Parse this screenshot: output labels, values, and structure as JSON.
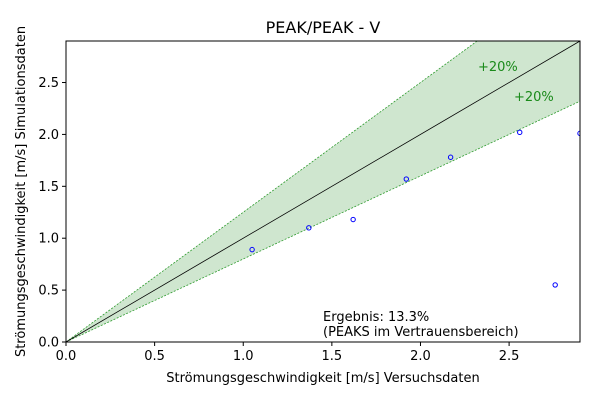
{
  "chart_data": {
    "type": "scatter",
    "title": "PEAK/PEAK - V",
    "xlabel": "Strömungsgeschwindigkeit [m/s] Versuchsdaten",
    "ylabel": "Strömungsgeschwindigkeit [m/s] Simulationsdaten",
    "xlim": [
      0,
      2.9
    ],
    "ylim": [
      0,
      2.9
    ],
    "xticks": [
      0.0,
      0.5,
      1.0,
      1.5,
      2.0,
      2.5
    ],
    "yticks": [
      0.0,
      0.5,
      1.0,
      1.5,
      2.0,
      2.5
    ],
    "xtick_labels": [
      "0.0",
      "0.5",
      "1.0",
      "1.5",
      "2.0",
      "2.5"
    ],
    "ytick_labels": [
      "0.0",
      "0.5",
      "1.0",
      "1.5",
      "2.0",
      "2.5"
    ],
    "grid": false,
    "reference_line": {
      "slope": 1.0
    },
    "tolerance_band": {
      "upper_slope": 1.25,
      "lower_slope": 0.8,
      "upper_label": "+20%",
      "lower_label": "+20%"
    },
    "points": [
      {
        "x": 1.05,
        "y": 0.89
      },
      {
        "x": 1.37,
        "y": 1.1
      },
      {
        "x": 1.62,
        "y": 1.18
      },
      {
        "x": 1.92,
        "y": 1.57
      },
      {
        "x": 2.17,
        "y": 1.78
      },
      {
        "x": 2.56,
        "y": 2.02
      },
      {
        "x": 2.76,
        "y": 0.55
      },
      {
        "x": 2.9,
        "y": 2.01
      }
    ],
    "annotation": {
      "line1": "Ergebnis: 13.3%",
      "line2": "(PEAKS im Vertrauensbereich)"
    },
    "colors": {
      "band_fill": "#cfe6cf",
      "band_edge": "#2e9b2e",
      "band_label": "#1a8a1a",
      "reference_line": "#000000",
      "points": "#0000ff"
    }
  }
}
